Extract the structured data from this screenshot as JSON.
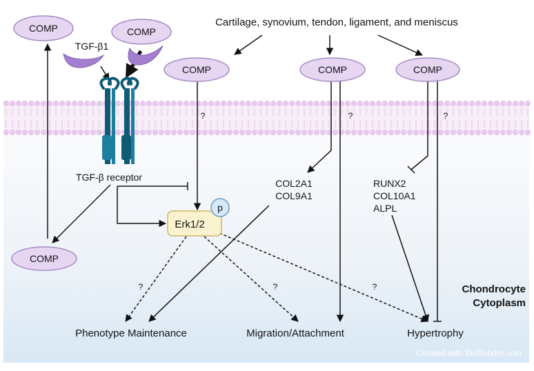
{
  "source_label": "Cartilage, synovium, tendon, ligament, and meniscus",
  "comp_label": "COMP",
  "ligand_label": "TGF-β1",
  "receptor_label": "TGF-β receptor",
  "kinase_label": "Erk1/2",
  "phospho_label": "p",
  "unknown_mark": "?",
  "collagen_genes": [
    "COL2A1",
    "COL9A1"
  ],
  "hypertrophy_genes": [
    "RUNX2",
    "COL10A1",
    "ALPL"
  ],
  "compartment_label": [
    "Chondrocyte",
    "Cytoplasm"
  ],
  "outcomes": {
    "phenotype": "Phenotype Maintenance",
    "migration": "Migration/Attachment",
    "hypertrophy": "Hypertrophy"
  },
  "watermark": "Created with BioRender.com",
  "colors": {
    "comp_fill": "#e6d6f2",
    "comp_stroke": "#a58bc4",
    "tgf_fill": "#a57fcf",
    "receptor_dark": "#0f5a74",
    "receptor_mid": "#1d7fa0",
    "erk_fill": "#fbf3cf",
    "erk_stroke": "#cdb56a",
    "phospho_fill": "#d6e9f8",
    "phospho_stroke": "#6a9cc7",
    "membrane": "#e7c9ec",
    "cytoplasm_bottom": "#d8e8f4"
  }
}
